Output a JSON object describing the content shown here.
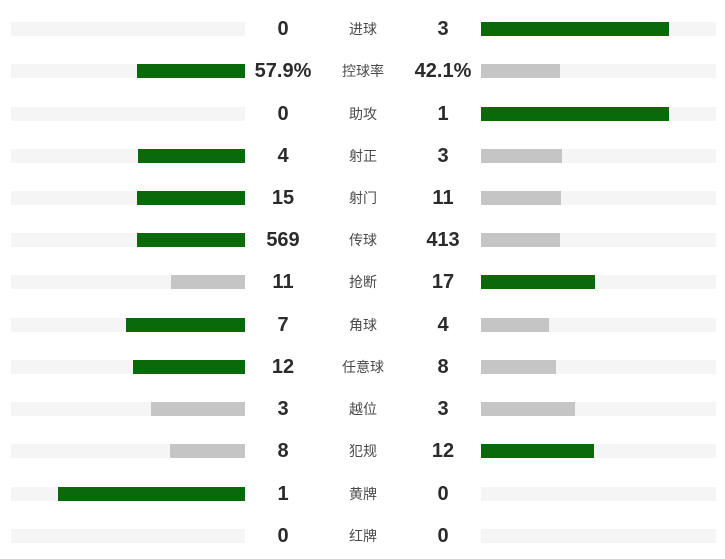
{
  "colors": {
    "background": "#ffffff",
    "bar_highlight_green": "#0a6a0a",
    "bar_muted_gray": "#c5c5c5",
    "track_gray": "#f5f5f5",
    "value_text": "#2b2b2b",
    "label_text": "#4a4a4a"
  },
  "chart_data": {
    "type": "bar",
    "variant": "mirrored-horizontal-comparison",
    "orientation": "horizontal",
    "bar_max_fraction_of_track": 0.8,
    "highlight_rule": "higher value bar is green, lower or tied value bar is gray, zero share renders no bar",
    "categories": [
      "进球",
      "控球率",
      "助攻",
      "射正",
      "射门",
      "传球",
      "抢断",
      "角球",
      "任意球",
      "越位",
      "犯规",
      "黄牌",
      "红牌"
    ],
    "series": [
      {
        "name": "left",
        "values": [
          0,
          57.9,
          0,
          4,
          15,
          569,
          11,
          7,
          12,
          3,
          8,
          1,
          0
        ],
        "display": [
          "0",
          "57.9%",
          "0",
          "4",
          "15",
          "569",
          "11",
          "7",
          "12",
          "3",
          "8",
          "1",
          "0"
        ]
      },
      {
        "name": "right",
        "values": [
          3,
          42.1,
          1,
          3,
          11,
          413,
          17,
          4,
          8,
          3,
          12,
          0,
          0
        ],
        "display": [
          "3",
          "42.1%",
          "1",
          "3",
          "11",
          "413",
          "17",
          "4",
          "8",
          "3",
          "12",
          "0",
          "0"
        ]
      }
    ]
  }
}
